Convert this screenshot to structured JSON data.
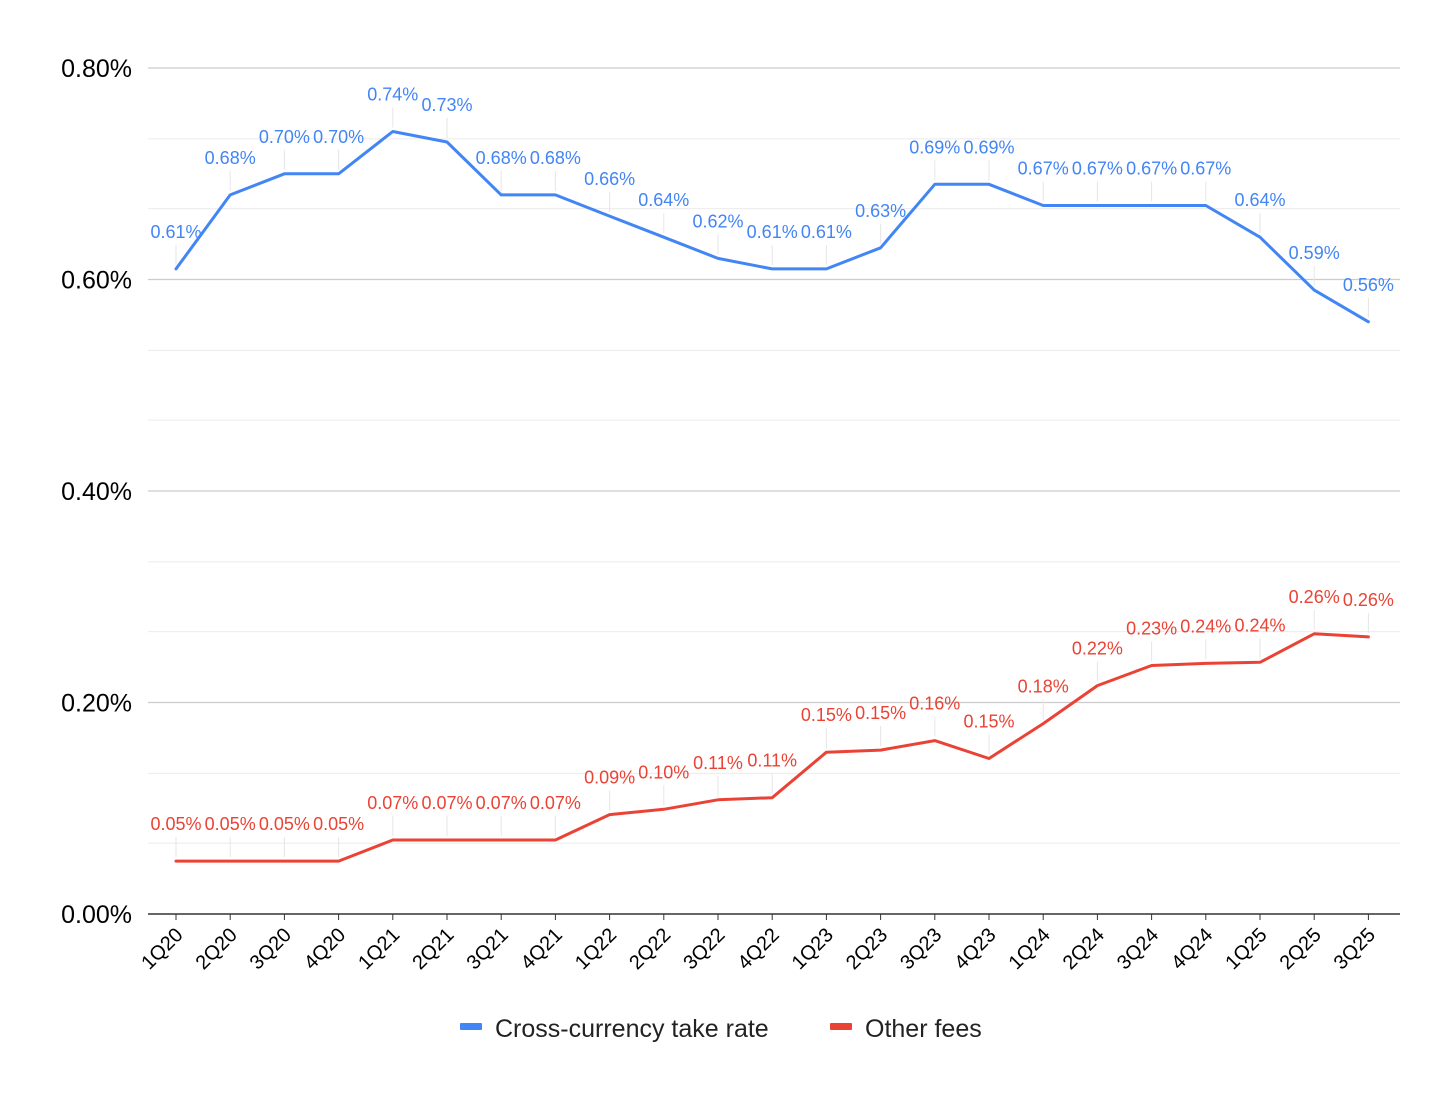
{
  "chart_data": {
    "type": "line",
    "categories": [
      "1Q20",
      "2Q20",
      "3Q20",
      "4Q20",
      "1Q21",
      "2Q21",
      "3Q21",
      "4Q21",
      "1Q22",
      "2Q22",
      "3Q22",
      "4Q22",
      "1Q23",
      "2Q23",
      "3Q23",
      "4Q23",
      "1Q24",
      "2Q24",
      "3Q24",
      "4Q24",
      "1Q25",
      "2Q25",
      "3Q25"
    ],
    "series": [
      {
        "name": "Cross-currency take rate",
        "color": "#4285f4",
        "values": [
          0.61,
          0.68,
          0.7,
          0.7,
          0.74,
          0.73,
          0.68,
          0.68,
          0.66,
          0.64,
          0.62,
          0.61,
          0.61,
          0.63,
          0.69,
          0.69,
          0.67,
          0.67,
          0.67,
          0.67,
          0.64,
          0.59,
          0.56
        ],
        "labels": [
          "0.61%",
          "0.68%",
          "0.70%",
          "0.70%",
          "0.74%",
          "0.73%",
          "0.68%",
          "0.68%",
          "0.66%",
          "0.64%",
          "0.62%",
          "0.61%",
          "0.61%",
          "0.63%",
          "0.69%",
          "0.69%",
          "0.67%",
          "0.67%",
          "0.67%",
          "0.67%",
          "0.64%",
          "0.59%",
          "0.56%"
        ]
      },
      {
        "name": "Other fees",
        "color": "#ea4335",
        "values": [
          0.05,
          0.05,
          0.05,
          0.05,
          0.07,
          0.07,
          0.07,
          0.07,
          0.094,
          0.099,
          0.108,
          0.11,
          0.153,
          0.155,
          0.164,
          0.147,
          0.18,
          0.216,
          0.235,
          0.237,
          0.238,
          0.265,
          0.262
        ],
        "labels": [
          "0.05%",
          "0.05%",
          "0.05%",
          "0.05%",
          "0.07%",
          "0.07%",
          "0.07%",
          "0.07%",
          "0.09%",
          "0.10%",
          "0.11%",
          "0.11%",
          "0.15%",
          "0.15%",
          "0.16%",
          "0.15%",
          "0.18%",
          "0.22%",
          "0.23%",
          "0.24%",
          "0.24%",
          "0.26%",
          "0.26%"
        ]
      }
    ],
    "ylim": [
      0,
      0.8
    ],
    "yticks": [
      {
        "value": 0.0,
        "label": "0.00%"
      },
      {
        "value": 0.2,
        "label": "0.20%"
      },
      {
        "value": 0.4,
        "label": "0.40%"
      },
      {
        "value": 0.6,
        "label": "0.60%"
      },
      {
        "value": 0.8,
        "label": "0.80%"
      }
    ],
    "minor_gridlines": [
      0.067,
      0.133,
      0.267,
      0.333,
      0.467,
      0.533,
      0.667,
      0.733
    ],
    "grid": true,
    "legend_position": "bottom",
    "title": "",
    "xlabel": "",
    "ylabel": ""
  }
}
